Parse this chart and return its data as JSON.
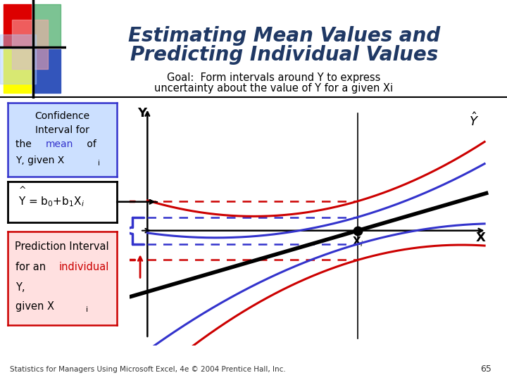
{
  "title_line1": "Estimating Mean Values and",
  "title_line2": "Predicting Individual Values",
  "title_color": "#1F3864",
  "background_color": "#FFFFFF",
  "goal_text_1": "Goal:  Form intervals around Y to express",
  "goal_text_2": "uncertainty about the value of Y for a given X",
  "footnote": "Statistics for Managers Using Microsoft Excel, 4e © 2004 Prentice Hall, Inc.",
  "page_num": "65",
  "line_color_black": "#000000",
  "line_color_blue": "#3333CC",
  "line_color_red": "#CC0000",
  "dashed_color_blue": "#3333CC",
  "dashed_color_red": "#CC0000",
  "conf_box_bg": "#CCE0FF",
  "conf_box_border": "#3333CC",
  "eq_box_bg": "#FFFFFF",
  "eq_box_border": "#000000",
  "pred_box_bg": "#FFE0E0",
  "pred_box_border": "#CC0000",
  "dec_red": "#DD0000",
  "dec_blue": "#3355BB",
  "dec_yellow": "#FFFF00",
  "dec_green": "#44AA66",
  "dec_ltblue": "#AACCFF",
  "dec_ltred": "#FFAAAA"
}
